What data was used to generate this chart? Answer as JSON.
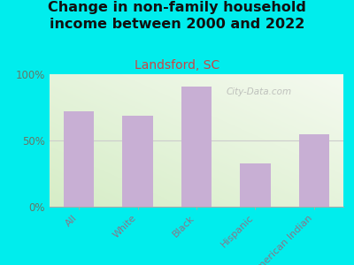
{
  "title": "Change in non-family household\nincome between 2000 and 2022",
  "subtitle": "Landsford, SC",
  "categories": [
    "All",
    "White",
    "Black",
    "Hispanic",
    "American Indian"
  ],
  "values": [
    72,
    69,
    91,
    33,
    55
  ],
  "bar_color": "#c8afd4",
  "title_fontsize": 11.5,
  "subtitle_fontsize": 10,
  "subtitle_color": "#cc4444",
  "tick_label_color": "#887788",
  "ytick_label_color": "#667766",
  "title_color": "#111111",
  "background_outer": "#00eded",
  "ylim": [
    0,
    100
  ],
  "yticks": [
    0,
    50,
    100
  ],
  "yticklabels": [
    "0%",
    "50%",
    "100%"
  ],
  "watermark": "City-Data.com",
  "watermark_color": "#aaaaaa",
  "grid_color": "#cccccc"
}
